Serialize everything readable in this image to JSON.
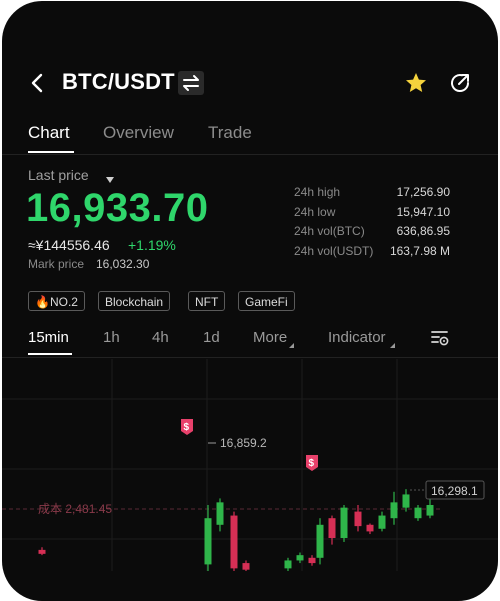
{
  "header": {
    "pair": "BTC/USDT",
    "back_icon": "chevron-left-icon",
    "swap_icon": "swap-icon",
    "star_icon": "star-icon",
    "share_icon": "share-icon",
    "star_color": "#f5d33d"
  },
  "tabs": [
    {
      "label": "Chart",
      "active": true
    },
    {
      "label": "Overview",
      "active": false
    },
    {
      "label": "Trade",
      "active": false
    }
  ],
  "price": {
    "last_price_label": "Last price",
    "value": "16,933.70",
    "cny": "≈¥144556.46",
    "change": "+1.19%",
    "mark_label": "Mark price",
    "mark_value": "16,032.30",
    "color_up": "#2fd66b"
  },
  "stats": [
    {
      "label": "24h high",
      "value": "17,256.90"
    },
    {
      "label": "24h low",
      "value": "15,947.10"
    },
    {
      "label": "24h vol(BTC)",
      "value": "636,86.95"
    },
    {
      "label": "24h vol(USDT)",
      "value": "163,7.98 M"
    }
  ],
  "tags": [
    {
      "label": "NO.2",
      "icon": "fire-icon"
    },
    {
      "label": "Blockchain"
    },
    {
      "label": "NFT"
    },
    {
      "label": "GameFi"
    }
  ],
  "intervals": [
    {
      "label": "15min",
      "active": true
    },
    {
      "label": "1h"
    },
    {
      "label": "4h"
    },
    {
      "label": "1d"
    },
    {
      "label": "More"
    },
    {
      "label": "Indicator"
    }
  ],
  "chart_data": {
    "type": "candlestick",
    "high_label": "16,859.2",
    "current_label": "16,298.1",
    "cost_label": "成本 2,481.45",
    "marker_label": "$",
    "colors": {
      "up": "#2fb54a",
      "down": "#d62f55",
      "marker": "#e8416b"
    },
    "candles": [
      {
        "dir": "down",
        "low": 0.12,
        "high": 0.18,
        "open": 0.16,
        "close": 0.13
      },
      {
        "dir": "up",
        "low": 0.0,
        "high": 0.5,
        "open": 0.05,
        "close": 0.4
      },
      {
        "dir": "up",
        "low": 0.3,
        "high": 0.55,
        "open": 0.35,
        "close": 0.52
      },
      {
        "dir": "down",
        "low": 0.0,
        "high": 0.45,
        "open": 0.42,
        "close": 0.02
      },
      {
        "dir": "down",
        "low": 0.0,
        "high": 0.08,
        "open": 0.06,
        "close": 0.01
      },
      {
        "dir": "up",
        "low": 0.0,
        "high": 0.1,
        "open": 0.02,
        "close": 0.08
      },
      {
        "dir": "up",
        "low": 0.06,
        "high": 0.14,
        "open": 0.08,
        "close": 0.12
      },
      {
        "dir": "down",
        "low": 0.04,
        "high": 0.12,
        "open": 0.1,
        "close": 0.06
      },
      {
        "dir": "up",
        "low": 0.05,
        "high": 0.4,
        "open": 0.1,
        "close": 0.35
      },
      {
        "dir": "down",
        "low": 0.2,
        "high": 0.42,
        "open": 0.4,
        "close": 0.25
      },
      {
        "dir": "up",
        "low": 0.22,
        "high": 0.5,
        "open": 0.25,
        "close": 0.48
      },
      {
        "dir": "down",
        "low": 0.3,
        "high": 0.5,
        "open": 0.45,
        "close": 0.34
      },
      {
        "dir": "down",
        "low": 0.28,
        "high": 0.36,
        "open": 0.35,
        "close": 0.3
      },
      {
        "dir": "up",
        "low": 0.3,
        "high": 0.45,
        "open": 0.32,
        "close": 0.42
      },
      {
        "dir": "up",
        "low": 0.35,
        "high": 0.6,
        "open": 0.4,
        "close": 0.52
      },
      {
        "dir": "up",
        "low": 0.45,
        "high": 0.62,
        "open": 0.48,
        "close": 0.58
      },
      {
        "dir": "up",
        "low": 0.38,
        "high": 0.5,
        "open": 0.4,
        "close": 0.48
      },
      {
        "dir": "up",
        "low": 0.4,
        "high": 0.55,
        "open": 0.42,
        "close": 0.5
      }
    ]
  }
}
